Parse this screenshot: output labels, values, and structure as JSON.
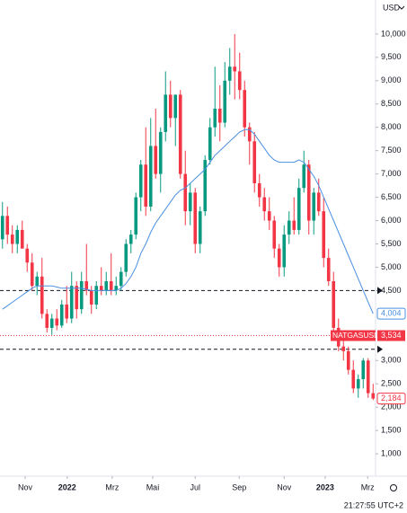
{
  "chart_data": {
    "type": "candlestick",
    "currency": "USD",
    "time": "21:27:55 UTC+2",
    "up_color": "#089981",
    "down_color": "#f23645",
    "xlim": [
      -0.5,
      75.5
    ],
    "xticks": [
      {
        "value": 4.6,
        "label": "Nov"
      },
      {
        "value": 13.1,
        "label": "2022"
      },
      {
        "value": 22.2,
        "label": "Mrz"
      },
      {
        "value": 30.4,
        "label": "Mai"
      },
      {
        "value": 39,
        "label": "Jul"
      },
      {
        "value": 47.9,
        "label": "Sep"
      },
      {
        "value": 57,
        "label": "Nov"
      },
      {
        "value": 65.3,
        "label": "2023"
      },
      {
        "value": 73.9,
        "label": "Mrz"
      }
    ],
    "ylim": [
      520,
      10730
    ],
    "yticks": [
      {
        "value": 10000,
        "label": "10,000"
      },
      {
        "value": 9500,
        "label": "9,500"
      },
      {
        "value": 9000,
        "label": "9,000"
      },
      {
        "value": 8500,
        "label": "8,500"
      },
      {
        "value": 8000,
        "label": "8,000"
      },
      {
        "value": 7500,
        "label": "7,500"
      },
      {
        "value": 7000,
        "label": "7,000"
      },
      {
        "value": 6500,
        "label": "6,500"
      },
      {
        "value": 6000,
        "label": "6,000"
      },
      {
        "value": 5500,
        "label": "5,500"
      },
      {
        "value": 5000,
        "label": "5,000"
      },
      {
        "value": 4500,
        "label": "4,500"
      },
      {
        "value": 3000,
        "label": "3,000"
      },
      {
        "value": 2500,
        "label": "2,500"
      },
      {
        "value": 2000,
        "label": "2,000"
      },
      {
        "value": 1500,
        "label": "1,500"
      },
      {
        "value": 1000,
        "label": "1,000"
      }
    ],
    "hlines": [
      4500,
      3240
    ],
    "open": [
      5600,
      6100,
      5700,
      5500,
      5800,
      5400,
      5100,
      4600,
      4800,
      4000,
      3700,
      3900,
      3750,
      4200,
      3900,
      4600,
      4100,
      4700,
      4500,
      4200,
      4600,
      4500,
      4700,
      4500,
      4600,
      4900,
      5500,
      5700,
      6500,
      7200,
      6300,
      7600,
      7000,
      7900,
      8700,
      8200,
      8700,
      7000,
      6200,
      6600,
      5500,
      6200,
      7300,
      8000,
      8400,
      8100,
      9000,
      9300,
      9200,
      8800,
      8000,
      7700,
      6800,
      6500,
      6200,
      6000,
      5400,
      5000,
      5700,
      6000,
      5800,
      6700,
      7200,
      6000,
      6600,
      6200,
      5200,
      4700,
      3700,
      3300,
      3200,
      2800,
      2400,
      2600,
      3000,
      2300
    ],
    "high": [
      6400,
      6300,
      5900,
      5900,
      6000,
      5500,
      5300,
      4900,
      5200,
      4100,
      4000,
      4100,
      4300,
      4600,
      4900,
      4700,
      4900,
      5500,
      4600,
      4700,
      5000,
      4900,
      5300,
      4800,
      5000,
      5600,
      5800,
      6600,
      7300,
      8000,
      8200,
      8400,
      8000,
      9200,
      9000,
      8700,
      8800,
      7500,
      6800,
      6700,
      6300,
      7400,
      8200,
      9300,
      8900,
      9400,
      9700,
      10000,
      9600,
      9000,
      8100,
      7900,
      7000,
      6700,
      6500,
      6100,
      5500,
      5900,
      6200,
      6500,
      6900,
      7500,
      7300,
      6700,
      6900,
      6500,
      5400,
      4900,
      3900,
      3600,
      3300,
      3000,
      2700,
      3050,
      3050,
      2500
    ],
    "low": [
      5400,
      5500,
      5300,
      5300,
      5400,
      4900,
      4500,
      4400,
      3900,
      3600,
      3550,
      3650,
      3700,
      3800,
      3800,
      3900,
      4000,
      4400,
      4000,
      4100,
      4400,
      4400,
      4400,
      4400,
      4500,
      4800,
      5300,
      5600,
      6200,
      6100,
      6200,
      6900,
      6600,
      7700,
      8000,
      7600,
      6900,
      5900,
      5900,
      5300,
      5300,
      6100,
      7200,
      7800,
      7700,
      8000,
      8700,
      8600,
      8600,
      7800,
      7200,
      6600,
      6300,
      6000,
      5800,
      5200,
      4800,
      4800,
      5500,
      5700,
      5700,
      6600,
      5700,
      5700,
      6100,
      5000,
      4600,
      3600,
      3200,
      3000,
      2700,
      2300,
      2200,
      2400,
      2200,
      2150
    ],
    "close": [
      6100,
      5700,
      5500,
      5800,
      5400,
      5100,
      4600,
      4800,
      4000,
      3700,
      3900,
      3750,
      4200,
      3900,
      4600,
      4100,
      4700,
      4500,
      4200,
      4600,
      4500,
      4700,
      4500,
      4600,
      4900,
      5500,
      5700,
      6500,
      7200,
      6300,
      7600,
      7000,
      7900,
      8700,
      8200,
      8700,
      7000,
      6200,
      6600,
      5500,
      6200,
      7300,
      8000,
      8400,
      8100,
      9000,
      9300,
      9200,
      8800,
      8000,
      7700,
      6800,
      6500,
      6200,
      6000,
      5400,
      5000,
      5700,
      6000,
      5800,
      6700,
      7200,
      6000,
      6600,
      6200,
      5200,
      4700,
      3700,
      3300,
      3200,
      2800,
      2400,
      2600,
      3000,
      2300,
      2184
    ],
    "close_label": "2,184",
    "ma": {
      "color": "#4a90e2",
      "label": "4,004",
      "values": [
        4100,
        4175,
        4250,
        4325,
        4400,
        4475,
        4550,
        4600,
        4600,
        4600,
        4600,
        4575,
        4550,
        4550,
        4550,
        4550,
        4550,
        4525,
        4500,
        4500,
        4500,
        4500,
        4500,
        4500,
        4550,
        4650,
        4800,
        5000,
        5300,
        5500,
        5750,
        5950,
        6100,
        6250,
        6400,
        6550,
        6650,
        6700,
        6800,
        6900,
        7000,
        7100,
        7250,
        7400,
        7500,
        7600,
        7700,
        7800,
        7900,
        7950,
        7950,
        7850,
        7700,
        7550,
        7400,
        7300,
        7250,
        7250,
        7250,
        7250,
        7300,
        7250,
        7100,
        6950,
        6750,
        6500,
        6250,
        6000,
        5750,
        5500,
        5250,
        5000,
        4750,
        4500,
        4250,
        4004
      ]
    },
    "last_price": {
      "name": "NATGASUSD",
      "value": 3534,
      "label": "3,534",
      "color": "#f23645"
    }
  }
}
